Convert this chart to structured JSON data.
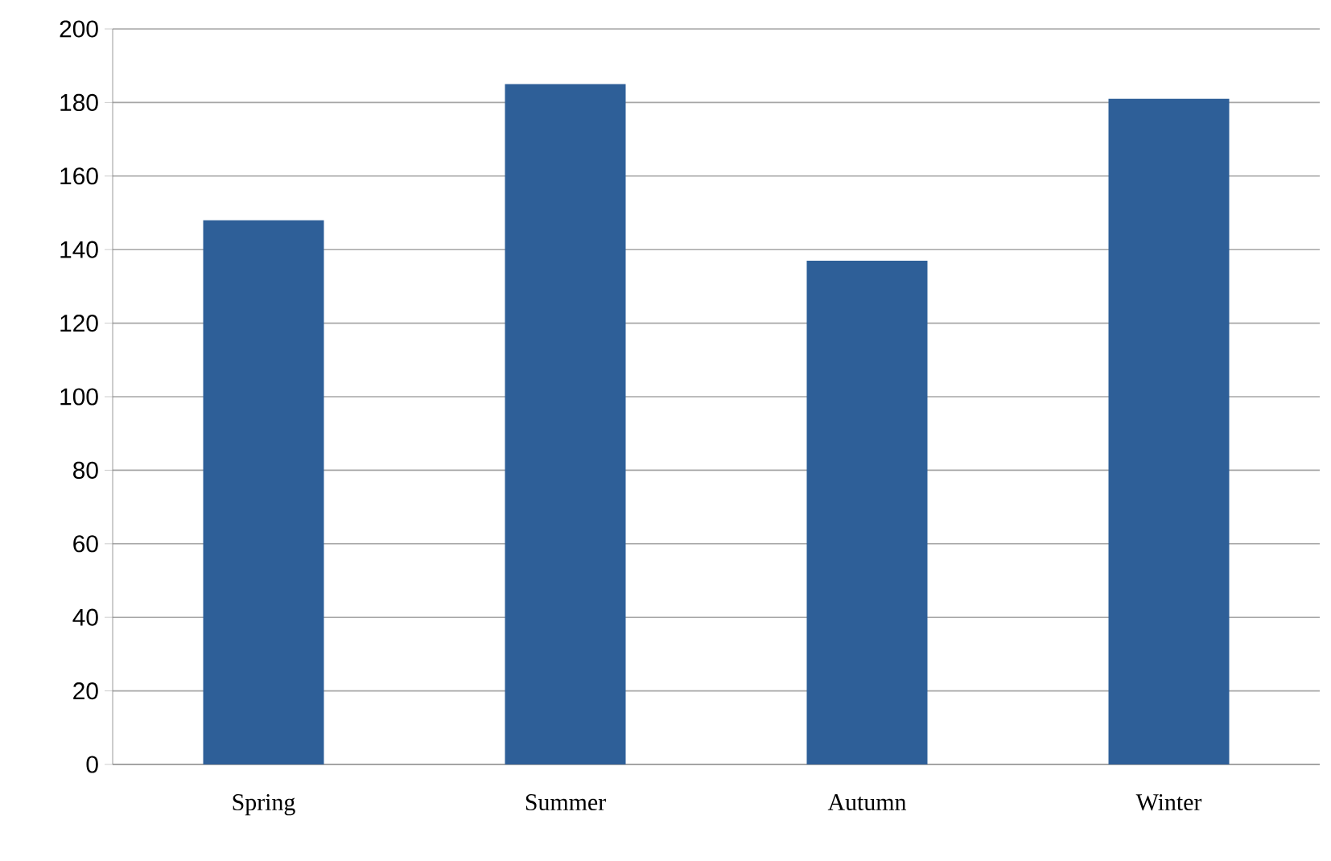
{
  "chart_data": {
    "type": "bar",
    "categories": [
      "Spring",
      "Summer",
      "Autumn",
      "Winter"
    ],
    "values": [
      148,
      185,
      137,
      181
    ],
    "color": "#2e5f98",
    "ylim": [
      0,
      200
    ],
    "yticks": [
      0,
      20,
      40,
      60,
      80,
      100,
      120,
      140,
      160,
      180,
      200
    ],
    "grid": "y"
  }
}
